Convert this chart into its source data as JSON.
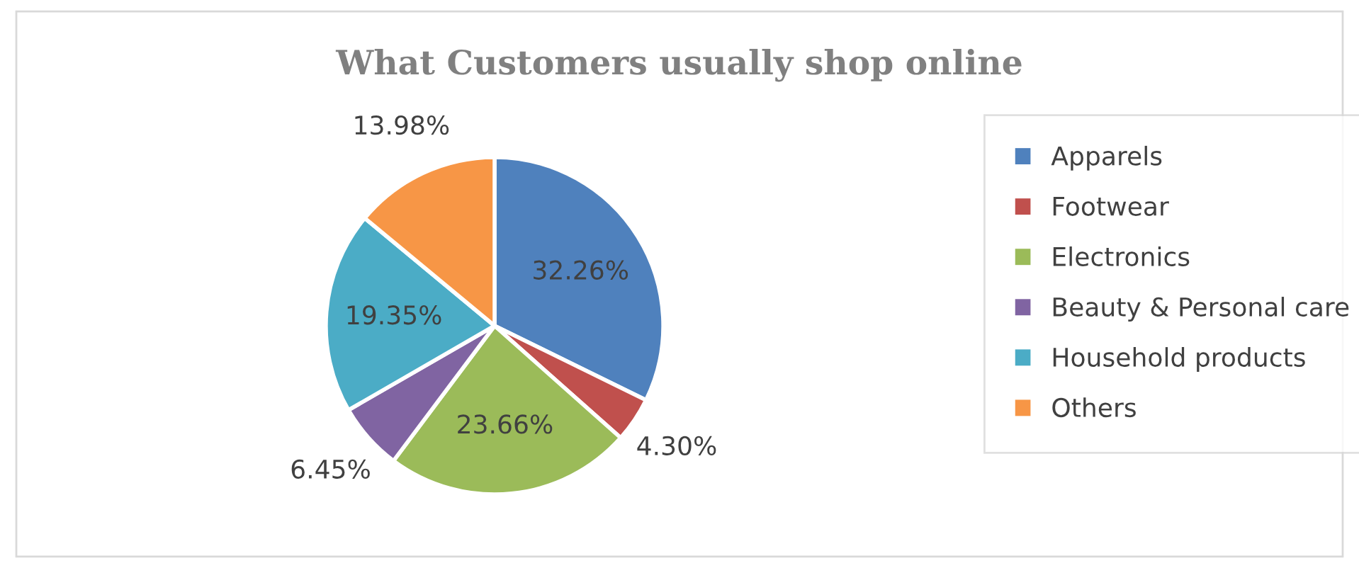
{
  "chart_data": {
    "type": "pie",
    "title": "What Customers usually shop online",
    "categories": [
      "Apparels",
      "Footwear",
      "Electronics",
      "Beauty & Personal care",
      "Household products",
      "Others"
    ],
    "values": [
      32.26,
      4.3,
      23.66,
      6.45,
      19.35,
      13.98
    ],
    "colors": [
      "#4f81bd",
      "#c0504d",
      "#9bbb59",
      "#8064a2",
      "#4bacc6",
      "#f79646"
    ],
    "value_labels": [
      "32.26%",
      "4.30%",
      "23.66%",
      "6.45%",
      "19.35%",
      "13.98%"
    ],
    "legend": "right"
  }
}
